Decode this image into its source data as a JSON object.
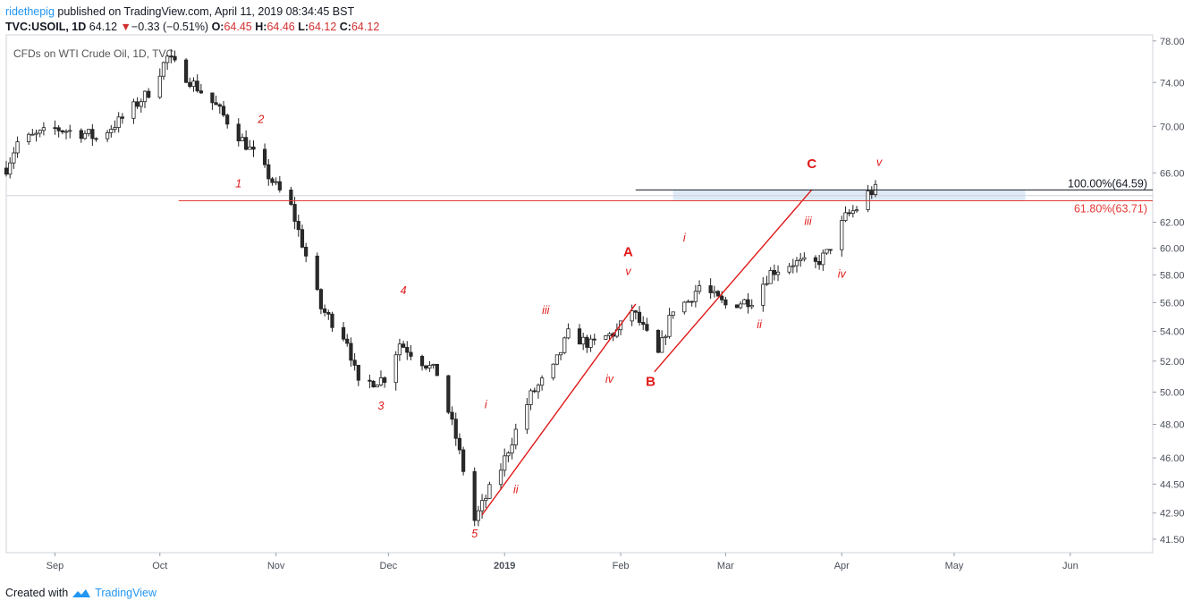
{
  "header": {
    "author": "ridethepig",
    "published_text": "published on TradingView.com, April 11, 2019 08:34:45 BST"
  },
  "quote": {
    "symbol": "TVC:USOIL, 1D",
    "last": "64.12",
    "change": "−0.33 (−0.51%)",
    "open_label": "O:",
    "open": "64.45",
    "high_label": "H:",
    "high": "64.46",
    "low_label": "L:",
    "low": "64.12",
    "close_label": "C:",
    "close": "64.12"
  },
  "footer": {
    "created_with": "Created with",
    "brand": "TradingView"
  },
  "colors": {
    "up_fill": "#ffffff",
    "down_fill": "#2a2a2a",
    "wick": "#222222",
    "wave_red": "#e01818",
    "fib_red": "#e53935",
    "zone": "#c8dcf0",
    "brand": "#2196f3"
  },
  "chart_data": {
    "type": "candlestick",
    "title": "CFDs on WTI Crude Oil, 1D, TVC",
    "scale": "log",
    "ylim": [
      40.8,
      78.6
    ],
    "y_ticks": [
      "78.00",
      "74.00",
      "70.00",
      "66.00",
      "62.00",
      "60.00",
      "58.00",
      "56.00",
      "54.00",
      "52.00",
      "50.00",
      "48.00",
      "46.00",
      "44.50",
      "42.90",
      "41.50"
    ],
    "x_ticks": [
      {
        "label": "Sep",
        "date": "2018-09-03"
      },
      {
        "label": "Oct",
        "date": "2018-10-01"
      },
      {
        "label": "Nov",
        "date": "2018-11-01"
      },
      {
        "label": "Dec",
        "date": "2018-12-01"
      },
      {
        "label": "2019",
        "date": "2019-01-01",
        "bold": true
      },
      {
        "label": "Feb",
        "date": "2019-02-01"
      },
      {
        "label": "Mar",
        "date": "2019-03-01"
      },
      {
        "label": "Apr",
        "date": "2019-04-01"
      },
      {
        "label": "May",
        "date": "2019-05-01"
      },
      {
        "label": "Jun",
        "date": "2019-06-01"
      }
    ],
    "xlim": [
      "2018-08-21",
      "2019-06-23"
    ],
    "path_anchors": [
      [
        "2018-08-21",
        66.4
      ],
      [
        "2018-08-24",
        68.6
      ],
      [
        "2018-09-03",
        69.8
      ],
      [
        "2018-09-12",
        69.3
      ],
      [
        "2018-09-14",
        68.9
      ],
      [
        "2018-09-21",
        70.7
      ],
      [
        "2018-09-28",
        73.1
      ],
      [
        "2018-10-03",
        76.4
      ],
      [
        "2018-10-09",
        74.2
      ],
      [
        "2018-10-16",
        71.8
      ],
      [
        "2018-10-22",
        69.2
      ],
      [
        "2018-10-26",
        67.6
      ],
      [
        "2018-10-31",
        65.3
      ],
      [
        "2018-11-05",
        63.2
      ],
      [
        "2018-11-13",
        55.6
      ],
      [
        "2018-11-20",
        53.4
      ],
      [
        "2018-11-23",
        50.4
      ],
      [
        "2018-11-30",
        50.9
      ],
      [
        "2018-12-04",
        53.2
      ],
      [
        "2018-12-07",
        52.6
      ],
      [
        "2018-12-14",
        51.2
      ],
      [
        "2018-12-19",
        47.2
      ],
      [
        "2018-12-24",
        42.5
      ],
      [
        "2018-12-31",
        45.4
      ],
      [
        "2019-01-08",
        49.8
      ],
      [
        "2019-01-14",
        51.5
      ],
      [
        "2019-01-18",
        53.8
      ],
      [
        "2019-01-24",
        53.1
      ],
      [
        "2019-01-31",
        54.0
      ],
      [
        "2019-02-04",
        55.5
      ],
      [
        "2019-02-11",
        52.4
      ],
      [
        "2019-02-15",
        55.6
      ],
      [
        "2019-02-19",
        56.1
      ],
      [
        "2019-02-22",
        57.2
      ],
      [
        "2019-03-01",
        55.8
      ],
      [
        "2019-03-08",
        56.2
      ],
      [
        "2019-03-13",
        58.2
      ],
      [
        "2019-03-19",
        58.9
      ],
      [
        "2019-03-25",
        58.8
      ],
      [
        "2019-03-28",
        59.6
      ],
      [
        "2019-04-02",
        62.4
      ],
      [
        "2019-04-05",
        63.1
      ],
      [
        "2019-04-08",
        64.3
      ],
      [
        "2019-04-10",
        64.6
      ]
    ],
    "wave_labels": [
      {
        "text": "1",
        "date": "2018-10-22",
        "price": 64.8,
        "italic": true,
        "size": "small"
      },
      {
        "text": "2",
        "date": "2018-10-28",
        "price": 70.3,
        "italic": true,
        "size": "small"
      },
      {
        "text": "3",
        "date": "2018-11-29",
        "price": 48.9,
        "italic": true,
        "size": "small"
      },
      {
        "text": "4",
        "date": "2018-12-05",
        "price": 56.6,
        "italic": true,
        "size": "small"
      },
      {
        "text": "5",
        "date": "2018-12-24",
        "price": 41.6,
        "italic": true,
        "size": "small"
      },
      {
        "text": "i",
        "date": "2018-12-27",
        "price": 49.0,
        "italic": true,
        "size": "small"
      },
      {
        "text": "ii",
        "date": "2019-01-04",
        "price": 44.0,
        "italic": true,
        "size": "small"
      },
      {
        "text": "iii",
        "date": "2019-01-12",
        "price": 55.2,
        "italic": true,
        "size": "small"
      },
      {
        "text": "iv",
        "date": "2019-01-29",
        "price": 50.6,
        "italic": true,
        "size": "small"
      },
      {
        "text": "v",
        "date": "2019-02-03",
        "price": 58.0,
        "italic": true,
        "size": "small"
      },
      {
        "text": "A",
        "date": "2019-02-03",
        "price": 59.4,
        "italic": false,
        "size": "large"
      },
      {
        "text": "B",
        "date": "2019-02-09",
        "price": 50.4,
        "italic": false,
        "size": "large"
      },
      {
        "text": "i",
        "date": "2019-02-18",
        "price": 60.5,
        "italic": true,
        "size": "small"
      },
      {
        "text": "ii",
        "date": "2019-03-10",
        "price": 54.2,
        "italic": true,
        "size": "small"
      },
      {
        "text": "iii",
        "date": "2019-03-23",
        "price": 61.8,
        "italic": true,
        "size": "small"
      },
      {
        "text": "iv",
        "date": "2019-04-01",
        "price": 57.8,
        "italic": true,
        "size": "small"
      },
      {
        "text": "C",
        "date": "2019-03-24",
        "price": 66.4,
        "italic": false,
        "size": "large"
      },
      {
        "text": "v",
        "date": "2019-04-11",
        "price": 66.6,
        "italic": true,
        "size": "small"
      }
    ],
    "wave_lines": [
      {
        "from": [
          "2018-12-26",
          42.8
        ],
        "to": [
          "2019-02-05",
          55.9
        ]
      },
      {
        "from": [
          "2019-02-10",
          51.3
        ],
        "to": [
          "2019-03-24",
          64.6
        ]
      }
    ],
    "fib_levels": [
      {
        "label": "100.00%(64.59)",
        "price": 64.59,
        "from": "2019-02-05",
        "to": "2019-06-23",
        "color": "#131722"
      },
      {
        "label": "61.80%(63.71)",
        "price": 63.71,
        "from": "2018-10-06",
        "to": "2019-06-23",
        "color": "#e53935"
      }
    ],
    "zone": {
      "from": "2019-02-15",
      "to": "2019-05-20",
      "low": 63.71,
      "high": 64.59
    },
    "last_price_guide": 64.12
  }
}
